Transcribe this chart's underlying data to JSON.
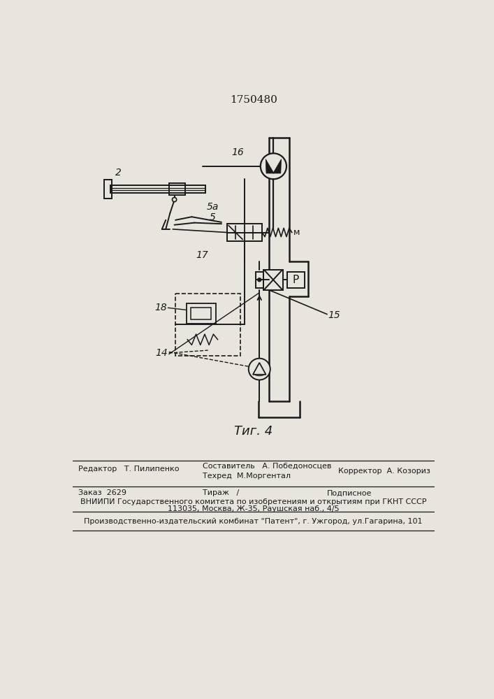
{
  "title": "1750480",
  "fig_label": "Τиг. 4",
  "bg_color": "#e8e4de",
  "line_color": "#1a1a1a",
  "footer": {
    "line1a": "Редактор   Т. Пилипенко",
    "line1b": "Составитель   А. Победоносцев",
    "line2": "                              Техред  М.Моргентал                  Корректор  А. Козориз",
    "line3a": "Заказ  2629",
    "line3b": "Тираж   /",
    "line3c": "Подписное",
    "line4": "ВНИИПИ Государственного комитета по изобретениям и открытиям при ГКНТ СССР",
    "line5": "113035, Москва, Ж-35, Раушская наб., 4/5",
    "line6": "Производственно-издательский комбинат \"Патент\", г. Ужгород, ул.Гагарина, 101"
  }
}
